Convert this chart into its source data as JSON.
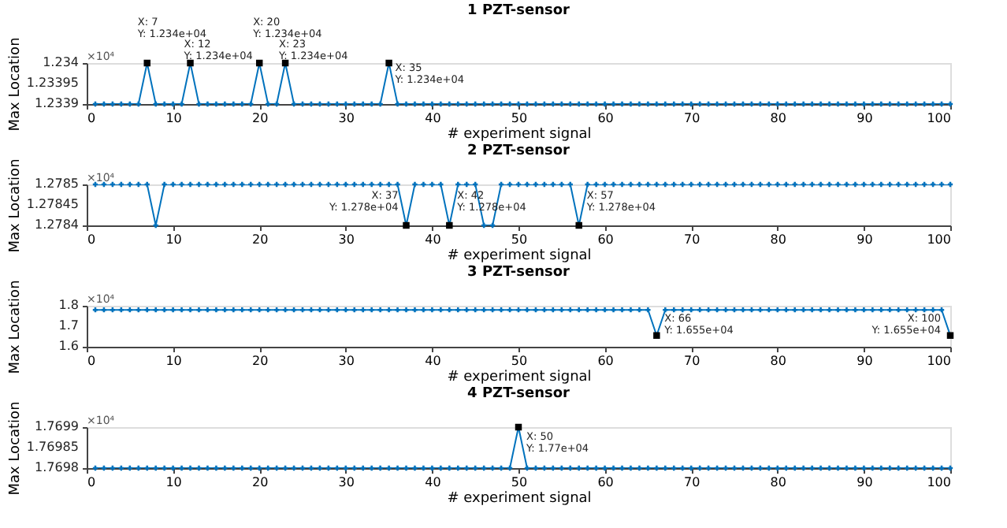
{
  "chart_data": [
    {
      "type": "line",
      "title": "1 PZT-sensor",
      "xlabel": "# experiment signal",
      "ylabel": "Max Location",
      "marker": "cross",
      "line_style": "solid",
      "grid": false,
      "xlim": [
        0,
        100
      ],
      "xticks": [
        0,
        10,
        20,
        30,
        40,
        50,
        60,
        70,
        80,
        90,
        100
      ],
      "ylim": [
        1.2339,
        1.234
      ],
      "yticks": [
        1.2339,
        1.23395,
        1.234
      ],
      "x": [
        1,
        2,
        3,
        4,
        5,
        6,
        7,
        8,
        9,
        10,
        11,
        12,
        13,
        14,
        15,
        16,
        17,
        18,
        19,
        20,
        21,
        22,
        23,
        24,
        25,
        26,
        27,
        28,
        29,
        30,
        31,
        32,
        33,
        34,
        35,
        36,
        37,
        38,
        39,
        40,
        41,
        42,
        43,
        44,
        45,
        46,
        47,
        48,
        49,
        50,
        51,
        52,
        53,
        54,
        55,
        56,
        57,
        58,
        59,
        60,
        61,
        62,
        63,
        64,
        65,
        66,
        67,
        68,
        69,
        70,
        71,
        72,
        73,
        74,
        75,
        76,
        77,
        78,
        79,
        80,
        81,
        82,
        83,
        84,
        85,
        86,
        87,
        88,
        89,
        90,
        91,
        92,
        93,
        94,
        95,
        96,
        97,
        98,
        99,
        100
      ],
      "series": [
        {
          "color": "#0072bd",
          "values": [
            1.2339,
            1.2339,
            1.2339,
            1.2339,
            1.2339,
            1.2339,
            1.234,
            1.2339,
            1.2339,
            1.2339,
            1.2339,
            1.234,
            1.2339,
            1.2339,
            1.2339,
            1.2339,
            1.2339,
            1.2339,
            1.2339,
            1.234,
            1.2339,
            1.2339,
            1.234,
            1.2339,
            1.2339,
            1.2339,
            1.2339,
            1.2339,
            1.2339,
            1.2339,
            1.2339,
            1.2339,
            1.2339,
            1.2339,
            1.234,
            1.2339,
            1.2339,
            1.2339,
            1.2339,
            1.2339,
            1.2339,
            1.2339,
            1.2339,
            1.2339,
            1.2339,
            1.2339,
            1.2339,
            1.2339,
            1.2339,
            1.2339,
            1.2339,
            1.2339,
            1.2339,
            1.2339,
            1.2339,
            1.2339,
            1.2339,
            1.2339,
            1.2339,
            1.2339,
            1.2339,
            1.2339,
            1.2339,
            1.2339,
            1.2339,
            1.2339,
            1.2339,
            1.2339,
            1.2339,
            1.2339,
            1.2339,
            1.2339,
            1.2339,
            1.2339,
            1.2339,
            1.2339,
            1.2339,
            1.2339,
            1.2339,
            1.2339,
            1.2339,
            1.2339,
            1.2339,
            1.2339,
            1.2339,
            1.2339,
            1.2339,
            1.2339,
            1.2339,
            1.2339,
            1.2339,
            1.2339,
            1.2339,
            1.2339,
            1.2339,
            1.2339,
            1.2339,
            1.2339,
            1.2339,
            1.2339
          ]
        },
        {
          "type": "scatter",
          "marker": "square",
          "color": "#000000",
          "x": [
            7,
            12,
            20,
            23,
            35
          ],
          "values": [
            1.234,
            1.234,
            1.234,
            1.234,
            1.234
          ]
        }
      ],
      "annotations": [
        "×10⁴",
        {
          "text": "X: 7\nY: 1.234e+04",
          "x": 7,
          "y": 1.234
        },
        {
          "text": "X: 12\nY: 1.234e+04",
          "x": 12,
          "y": 1.234
        },
        {
          "text": "X: 20\nY: 1.234e+04",
          "x": 20,
          "y": 1.234
        },
        {
          "text": "X: 23\nY: 1.234e+04",
          "x": 23,
          "y": 1.234
        },
        {
          "text": "X: 35\nY: 1.234e+04",
          "x": 35,
          "y": 1.234
        }
      ]
    },
    {
      "type": "line",
      "title": "2 PZT-sensor",
      "xlabel": "# experiment signal",
      "ylabel": "Max Location",
      "marker": "cross",
      "line_style": "solid",
      "grid": false,
      "xlim": [
        0,
        100
      ],
      "xticks": [
        0,
        10,
        20,
        30,
        40,
        50,
        60,
        70,
        80,
        90,
        100
      ],
      "ylim": [
        1.2784,
        1.2785
      ],
      "yticks": [
        1.2784,
        1.27845,
        1.2785
      ],
      "x": [
        1,
        2,
        3,
        4,
        5,
        6,
        7,
        8,
        9,
        10,
        11,
        12,
        13,
        14,
        15,
        16,
        17,
        18,
        19,
        20,
        21,
        22,
        23,
        24,
        25,
        26,
        27,
        28,
        29,
        30,
        31,
        32,
        33,
        34,
        35,
        36,
        37,
        38,
        39,
        40,
        41,
        42,
        43,
        44,
        45,
        46,
        47,
        48,
        49,
        50,
        51,
        52,
        53,
        54,
        55,
        56,
        57,
        58,
        59,
        60,
        61,
        62,
        63,
        64,
        65,
        66,
        67,
        68,
        69,
        70,
        71,
        72,
        73,
        74,
        75,
        76,
        77,
        78,
        79,
        80,
        81,
        82,
        83,
        84,
        85,
        86,
        87,
        88,
        89,
        90,
        91,
        92,
        93,
        94,
        95,
        96,
        97,
        98,
        99,
        100
      ],
      "series": [
        {
          "color": "#0072bd",
          "values": [
            1.2785,
            1.2785,
            1.2785,
            1.2785,
            1.2785,
            1.2785,
            1.2785,
            1.2784,
            1.2785,
            1.2785,
            1.2785,
            1.2785,
            1.2785,
            1.2785,
            1.2785,
            1.2785,
            1.2785,
            1.2785,
            1.2785,
            1.2785,
            1.2785,
            1.2785,
            1.2785,
            1.2785,
            1.2785,
            1.2785,
            1.2785,
            1.2785,
            1.2785,
            1.2785,
            1.2785,
            1.2785,
            1.2785,
            1.2785,
            1.2785,
            1.2785,
            1.2784,
            1.2785,
            1.2785,
            1.2785,
            1.2785,
            1.2784,
            1.2785,
            1.2785,
            1.2785,
            1.2784,
            1.2784,
            1.2785,
            1.2785,
            1.2785,
            1.2785,
            1.2785,
            1.2785,
            1.2785,
            1.2785,
            1.2785,
            1.2784,
            1.2785,
            1.2785,
            1.2785,
            1.2785,
            1.2785,
            1.2785,
            1.2785,
            1.2785,
            1.2785,
            1.2785,
            1.2785,
            1.2785,
            1.2785,
            1.2785,
            1.2785,
            1.2785,
            1.2785,
            1.2785,
            1.2785,
            1.2785,
            1.2785,
            1.2785,
            1.2785,
            1.2785,
            1.2785,
            1.2785,
            1.2785,
            1.2785,
            1.2785,
            1.2785,
            1.2785,
            1.2785,
            1.2785,
            1.2785,
            1.2785,
            1.2785,
            1.2785,
            1.2785,
            1.2785,
            1.2785,
            1.2785,
            1.2785,
            1.2785
          ]
        },
        {
          "type": "scatter",
          "marker": "square",
          "color": "#000000",
          "x": [
            37,
            42,
            57
          ],
          "values": [
            1.2784,
            1.2784,
            1.2784
          ]
        }
      ],
      "annotations": [
        "×10⁴",
        {
          "text": "X: 37\nY: 1.278e+04",
          "x": 37,
          "y": 1.2784
        },
        {
          "text": "X: 42\nY: 1.278e+04",
          "x": 42,
          "y": 1.2784
        },
        {
          "text": "X: 57\nY: 1.278e+04",
          "x": 57,
          "y": 1.2784
        }
      ]
    },
    {
      "type": "line",
      "title": "3 PZT-sensor",
      "xlabel": "# experiment signal",
      "ylabel": "Max Location",
      "marker": "cross",
      "line_style": "solid",
      "grid": false,
      "xlim": [
        0,
        100
      ],
      "xticks": [
        0,
        10,
        20,
        30,
        40,
        50,
        60,
        70,
        80,
        90,
        100
      ],
      "ylim": [
        1.6,
        1.8
      ],
      "yticks": [
        1.6,
        1.7,
        1.8
      ],
      "x": [
        1,
        2,
        3,
        4,
        5,
        6,
        7,
        8,
        9,
        10,
        11,
        12,
        13,
        14,
        15,
        16,
        17,
        18,
        19,
        20,
        21,
        22,
        23,
        24,
        25,
        26,
        27,
        28,
        29,
        30,
        31,
        32,
        33,
        34,
        35,
        36,
        37,
        38,
        39,
        40,
        41,
        42,
        43,
        44,
        45,
        46,
        47,
        48,
        49,
        50,
        51,
        52,
        53,
        54,
        55,
        56,
        57,
        58,
        59,
        60,
        61,
        62,
        63,
        64,
        65,
        66,
        67,
        68,
        69,
        70,
        71,
        72,
        73,
        74,
        75,
        76,
        77,
        78,
        79,
        80,
        81,
        82,
        83,
        84,
        85,
        86,
        87,
        88,
        89,
        90,
        91,
        92,
        93,
        94,
        95,
        96,
        97,
        98,
        99,
        100
      ],
      "series": [
        {
          "color": "#0072bd",
          "values": [
            1.78,
            1.78,
            1.78,
            1.78,
            1.78,
            1.78,
            1.78,
            1.78,
            1.78,
            1.78,
            1.78,
            1.78,
            1.78,
            1.78,
            1.78,
            1.78,
            1.78,
            1.78,
            1.78,
            1.78,
            1.78,
            1.78,
            1.78,
            1.78,
            1.78,
            1.78,
            1.78,
            1.78,
            1.78,
            1.78,
            1.78,
            1.78,
            1.78,
            1.78,
            1.78,
            1.78,
            1.78,
            1.78,
            1.78,
            1.78,
            1.78,
            1.78,
            1.78,
            1.78,
            1.78,
            1.78,
            1.78,
            1.78,
            1.78,
            1.78,
            1.78,
            1.78,
            1.78,
            1.78,
            1.78,
            1.78,
            1.78,
            1.78,
            1.78,
            1.78,
            1.78,
            1.78,
            1.78,
            1.78,
            1.78,
            1.655,
            1.78,
            1.78,
            1.78,
            1.78,
            1.78,
            1.78,
            1.78,
            1.78,
            1.78,
            1.78,
            1.78,
            1.78,
            1.78,
            1.78,
            1.78,
            1.78,
            1.78,
            1.78,
            1.78,
            1.78,
            1.78,
            1.78,
            1.78,
            1.78,
            1.78,
            1.78,
            1.78,
            1.78,
            1.78,
            1.78,
            1.78,
            1.78,
            1.78,
            1.655
          ]
        },
        {
          "type": "scatter",
          "marker": "square",
          "color": "#000000",
          "x": [
            66,
            100
          ],
          "values": [
            1.655,
            1.655
          ]
        }
      ],
      "annotations": [
        "×10⁴",
        {
          "text": "X: 66\nY: 1.655e+04",
          "x": 66,
          "y": 1.655
        },
        {
          "text": "X: 100\nY: 1.655e+04",
          "x": 100,
          "y": 1.655
        }
      ]
    },
    {
      "type": "line",
      "title": "4 PZT-sensor",
      "xlabel": "# experiment signal",
      "ylabel": "Max Location",
      "marker": "cross",
      "line_style": "solid",
      "grid": false,
      "xlim": [
        0,
        100
      ],
      "xticks": [
        0,
        10,
        20,
        30,
        40,
        50,
        60,
        70,
        80,
        90,
        100
      ],
      "ylim": [
        1.7698,
        1.7699
      ],
      "yticks": [
        1.7698,
        1.76985,
        1.7699
      ],
      "x": [
        1,
        2,
        3,
        4,
        5,
        6,
        7,
        8,
        9,
        10,
        11,
        12,
        13,
        14,
        15,
        16,
        17,
        18,
        19,
        20,
        21,
        22,
        23,
        24,
        25,
        26,
        27,
        28,
        29,
        30,
        31,
        32,
        33,
        34,
        35,
        36,
        37,
        38,
        39,
        40,
        41,
        42,
        43,
        44,
        45,
        46,
        47,
        48,
        49,
        50,
        51,
        52,
        53,
        54,
        55,
        56,
        57,
        58,
        59,
        60,
        61,
        62,
        63,
        64,
        65,
        66,
        67,
        68,
        69,
        70,
        71,
        72,
        73,
        74,
        75,
        76,
        77,
        78,
        79,
        80,
        81,
        82,
        83,
        84,
        85,
        86,
        87,
        88,
        89,
        90,
        91,
        92,
        93,
        94,
        95,
        96,
        97,
        98,
        99,
        100
      ],
      "series": [
        {
          "color": "#0072bd",
          "values": [
            1.7698,
            1.7698,
            1.7698,
            1.7698,
            1.7698,
            1.7698,
            1.7698,
            1.7698,
            1.7698,
            1.7698,
            1.7698,
            1.7698,
            1.7698,
            1.7698,
            1.7698,
            1.7698,
            1.7698,
            1.7698,
            1.7698,
            1.7698,
            1.7698,
            1.7698,
            1.7698,
            1.7698,
            1.7698,
            1.7698,
            1.7698,
            1.7698,
            1.7698,
            1.7698,
            1.7698,
            1.7698,
            1.7698,
            1.7698,
            1.7698,
            1.7698,
            1.7698,
            1.7698,
            1.7698,
            1.7698,
            1.7698,
            1.7698,
            1.7698,
            1.7698,
            1.7698,
            1.7698,
            1.7698,
            1.7698,
            1.7698,
            1.7699,
            1.7698,
            1.7698,
            1.7698,
            1.7698,
            1.7698,
            1.7698,
            1.7698,
            1.7698,
            1.7698,
            1.7698,
            1.7698,
            1.7698,
            1.7698,
            1.7698,
            1.7698,
            1.7698,
            1.7698,
            1.7698,
            1.7698,
            1.7698,
            1.7698,
            1.7698,
            1.7698,
            1.7698,
            1.7698,
            1.7698,
            1.7698,
            1.7698,
            1.7698,
            1.7698,
            1.7698,
            1.7698,
            1.7698,
            1.7698,
            1.7698,
            1.7698,
            1.7698,
            1.7698,
            1.7698,
            1.7698,
            1.7698,
            1.7698,
            1.7698,
            1.7698,
            1.7698,
            1.7698,
            1.7698,
            1.7698,
            1.7698,
            1.7698
          ]
        },
        {
          "type": "scatter",
          "marker": "square",
          "color": "#000000",
          "x": [
            50
          ],
          "values": [
            1.7699
          ]
        }
      ],
      "annotations": [
        "×10⁴",
        {
          "text": "X: 50\nY: 1.77e+04",
          "x": 50,
          "y": 1.7699
        }
      ]
    }
  ]
}
